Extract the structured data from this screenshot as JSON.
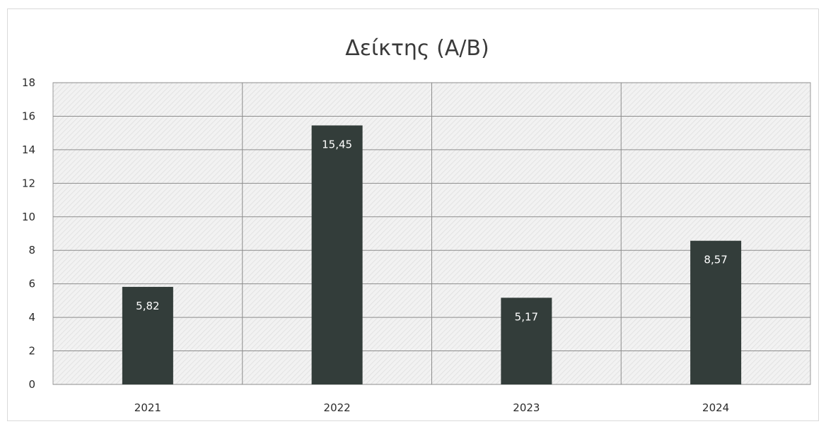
{
  "chart_data": {
    "type": "bar",
    "title": "Δείκτης (Α/Β)",
    "categories": [
      "2021",
      "2022",
      "2023",
      "2024"
    ],
    "values": [
      5.82,
      15.45,
      5.17,
      8.57
    ],
    "data_labels": [
      "5,82",
      "15,45",
      "5,17",
      "8,57"
    ],
    "y_ticks": [
      "0",
      "2",
      "4",
      "6",
      "8",
      "10",
      "12",
      "14",
      "16",
      "18"
    ],
    "ylim": [
      0,
      18
    ],
    "xlabel": "",
    "ylabel": "",
    "grid": true,
    "legend": "none",
    "colors": {
      "bar": "#333d3a",
      "plot_background": "#f2f2f2",
      "hatch": "#dcdcdc",
      "gridline": "#8c8c8c",
      "plot_border": "#9a9a9a"
    }
  }
}
